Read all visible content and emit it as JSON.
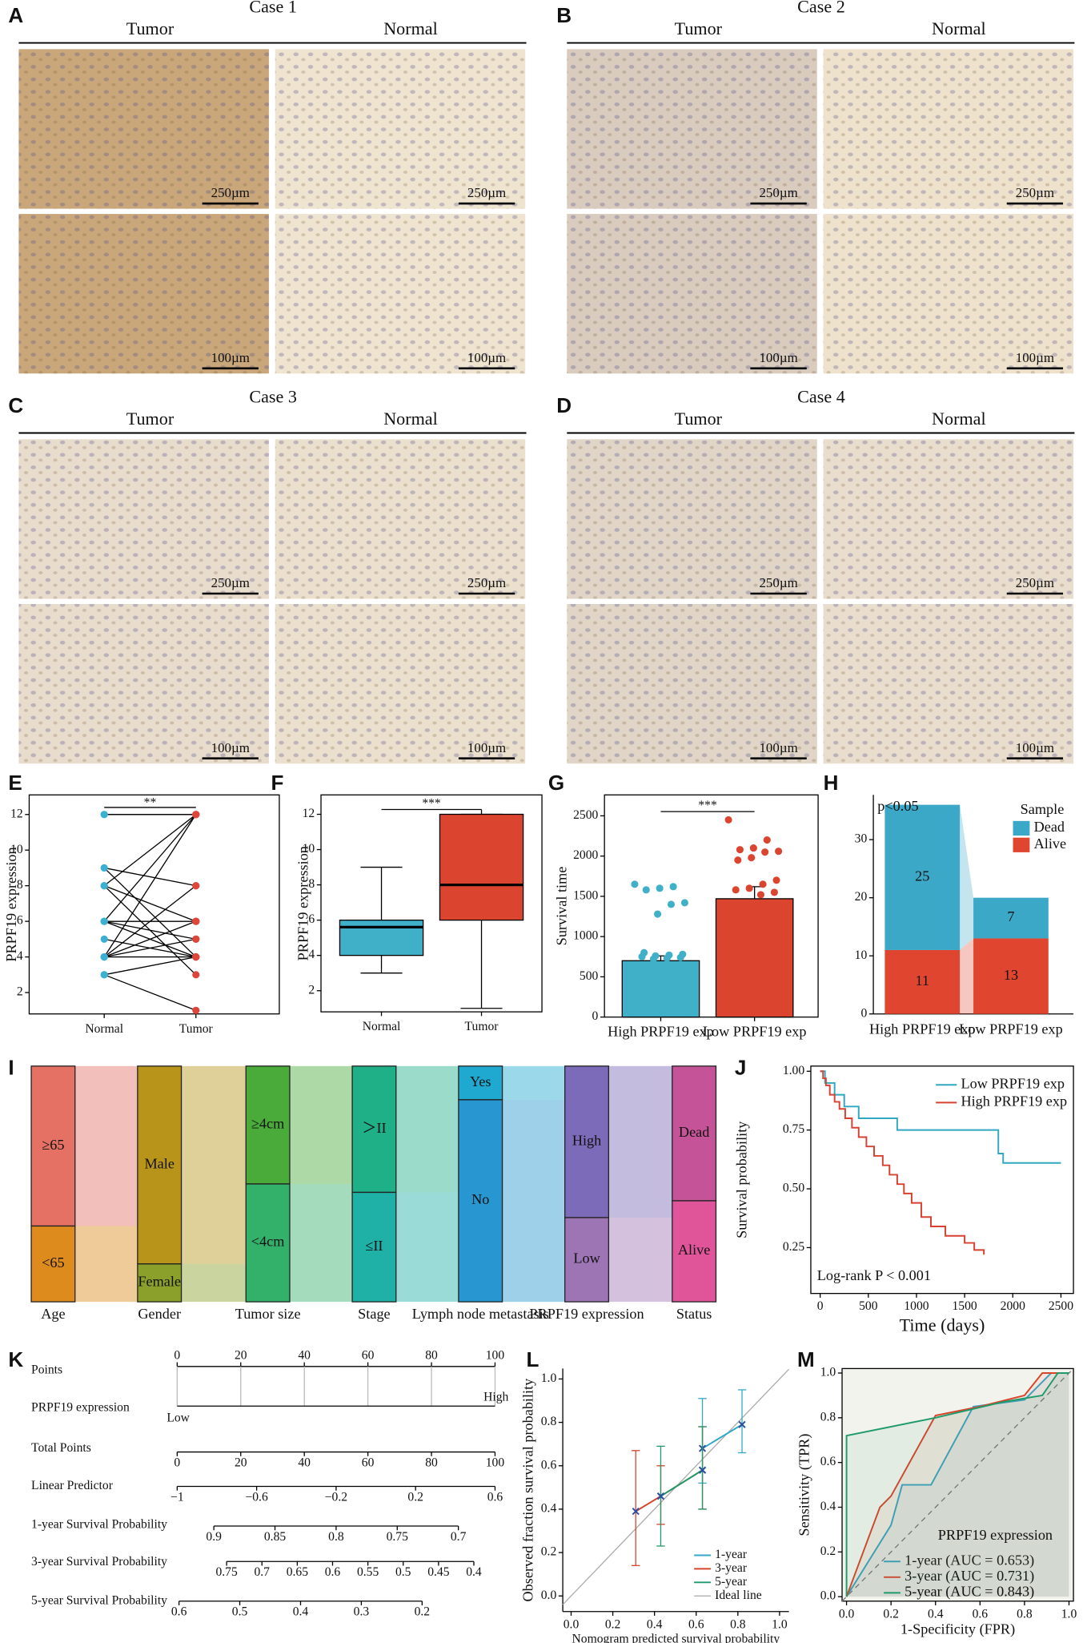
{
  "image_panels": [
    {
      "label": "A",
      "case": "Case 1",
      "headers": [
        "Tumor",
        "Normal"
      ],
      "scale_bars": [
        "250µm",
        "250µm",
        "100µm",
        "100µm"
      ]
    },
    {
      "label": "B",
      "case": "Case 2",
      "headers": [
        "Tumor",
        "Normal"
      ],
      "scale_bars": [
        "250µm",
        "250µm",
        "100µm",
        "100µm"
      ]
    },
    {
      "label": "C",
      "case": "Case 3",
      "headers": [
        "Tumor",
        "Normal"
      ],
      "scale_bars": [
        "250µm",
        "250µm",
        "100µm",
        "100µm"
      ]
    },
    {
      "label": "D",
      "case": "Case 4",
      "headers": [
        "Tumor",
        "Normal"
      ],
      "scale_bars": [
        "250µm",
        "250µm",
        "100µm",
        "100µm"
      ]
    }
  ],
  "chart_data": [
    {
      "panel": "E",
      "type": "paired_dots",
      "ylabel": "PRPF19 expression",
      "categories": [
        "Normal",
        "Tumor"
      ],
      "colors": [
        "#3bb0d0",
        "#e0453a"
      ],
      "pairs": [
        [
          12,
          12
        ],
        [
          12,
          12
        ],
        [
          9,
          8
        ],
        [
          9,
          4
        ],
        [
          8,
          12
        ],
        [
          8,
          6
        ],
        [
          8,
          3
        ],
        [
          6,
          12
        ],
        [
          6,
          6
        ],
        [
          6,
          5
        ],
        [
          6,
          4
        ],
        [
          6,
          6
        ],
        [
          5,
          4
        ],
        [
          4,
          12
        ],
        [
          4,
          8
        ],
        [
          4,
          6
        ],
        [
          4,
          4
        ],
        [
          4,
          5
        ],
        [
          3,
          1
        ],
        [
          3,
          4
        ]
      ],
      "annotation": "**",
      "ylim": [
        0.8,
        13.1
      ],
      "yticks": [
        2,
        4,
        6,
        8,
        10,
        12
      ]
    },
    {
      "panel": "F",
      "type": "box",
      "ylabel": "PRPF19 expression",
      "categories": [
        "Normal",
        "Tumor"
      ],
      "colors": [
        "#40afc8",
        "#db4530"
      ],
      "boxes": [
        {
          "min": 3,
          "q1": 4,
          "median": 5.6,
          "q3": 6,
          "max": 9
        },
        {
          "min": 1,
          "q1": 6,
          "median": 8,
          "q3": 12,
          "max": 12
        }
      ],
      "annotation": "***",
      "ylim": [
        0.8,
        13.1
      ],
      "yticks": [
        2,
        4,
        6,
        8,
        10,
        12
      ]
    },
    {
      "panel": "G",
      "type": "bar_points",
      "ylabel": "Survival time",
      "categories": [
        "High PRPF19 exp",
        "Low PRPF19 exp"
      ],
      "colors": [
        "#40afc8",
        "#db4530"
      ],
      "values": [
        700,
        1470
      ],
      "errors": [
        60,
        150
      ],
      "points": [
        [
          1650,
          1620,
          1600,
          1580,
          1420,
          1400,
          1280,
          800,
          780,
          770,
          760,
          750,
          740,
          730,
          720
        ],
        [
          2450,
          2200,
          2100,
          2080,
          2060,
          2050,
          1980,
          1950,
          1700,
          1650,
          1600,
          1580,
          1550,
          1520
        ]
      ],
      "annotation": "***",
      "ylim": [
        0,
        2760
      ],
      "yticks": [
        0,
        500,
        1000,
        1500,
        2000,
        2500
      ]
    },
    {
      "panel": "H",
      "type": "stacked_bar",
      "categories": [
        "High PRPF19 exp",
        "Low PRPF19 exp"
      ],
      "legend_title": "Sample",
      "annotation": "p<0.05",
      "series": [
        {
          "name": "Alive",
          "color": "#e0452f",
          "values": [
            11,
            13
          ]
        },
        {
          "name": "Dead",
          "color": "#3aa8c6",
          "values": [
            25,
            7
          ]
        }
      ],
      "ylim": [
        0,
        37.7
      ],
      "yticks": [
        0,
        10,
        20,
        30
      ]
    },
    {
      "panel": "I",
      "type": "alluvial",
      "columns": [
        {
          "name": "Age",
          "nodes": [
            {
              "label": "≥65",
              "count": 38,
              "color": "#e57165"
            },
            {
              "label": "<65",
              "count": 18,
              "color": "#de8b1e"
            }
          ]
        },
        {
          "name": "Gender",
          "nodes": [
            {
              "label": "Male",
              "count": 47,
              "color": "#b8951a"
            },
            {
              "label": "Female",
              "count": 9,
              "color": "#8aa02a"
            }
          ]
        },
        {
          "name": "Tumor size",
          "nodes": [
            {
              "label": "≥4cm",
              "count": 28,
              "color": "#4aab3a"
            },
            {
              "label": "<4cm",
              "count": 28,
              "color": "#33b06a"
            }
          ]
        },
        {
          "name": "Stage",
          "nodes": [
            {
              "label": "＞II",
              "count": 30,
              "color": "#1fb088"
            },
            {
              "label": "≤II",
              "count": 26,
              "color": "#1fb0a6"
            }
          ]
        },
        {
          "name": "Lymph node metastasis",
          "nodes": [
            {
              "label": "Yes",
              "count": 8,
              "color": "#1fa8d0"
            },
            {
              "label": "No",
              "count": 48,
              "color": "#2896d0"
            }
          ]
        },
        {
          "name": "PRPF19 expression",
          "nodes": [
            {
              "label": "High",
              "count": 36,
              "color": "#7b6bb8"
            },
            {
              "label": "Low",
              "count": 20,
              "color": "#9d75b5"
            }
          ]
        },
        {
          "name": "Status",
          "nodes": [
            {
              "label": "Dead",
              "count": 32,
              "color": "#c45497"
            },
            {
              "label": "Alive",
              "count": 24,
              "color": "#e0559a"
            }
          ]
        }
      ]
    },
    {
      "panel": "J",
      "type": "km",
      "xlabel": "Time (days)",
      "ylabel": "Survival probability",
      "annotation": "Log-rank P < 0.001",
      "series": [
        {
          "name": "Low PRPF19 exp",
          "color": "#2fa8c0",
          "x": [
            0,
            50,
            150,
            250,
            400,
            800,
            1850,
            1900,
            2500
          ],
          "y": [
            1,
            0.95,
            0.9,
            0.85,
            0.8,
            0.75,
            0.65,
            0.61,
            0.61
          ]
        },
        {
          "name": "High PRPF19 exp",
          "color": "#d84030",
          "x": [
            0,
            30,
            60,
            100,
            150,
            200,
            260,
            330,
            400,
            480,
            560,
            650,
            720,
            800,
            870,
            950,
            1050,
            1150,
            1300,
            1500,
            1600,
            1700
          ],
          "y": [
            1,
            0.97,
            0.94,
            0.9,
            0.87,
            0.84,
            0.8,
            0.76,
            0.72,
            0.68,
            0.64,
            0.6,
            0.56,
            0.52,
            0.48,
            0.44,
            0.38,
            0.34,
            0.3,
            0.27,
            0.24,
            0.22
          ]
        }
      ],
      "xlim": [
        -97,
        2630
      ],
      "ylim": [
        0.055,
        1.022
      ],
      "xticks": [
        0,
        500,
        1000,
        1500,
        2000,
        2500
      ],
      "yticks": [
        0.25,
        {
          "value": 0.5,
          "label": "0.50"
        },
        0.75,
        {
          "value": 1,
          "label": "1.00"
        }
      ]
    },
    {
      "panel": "K",
      "type": "nomogram",
      "rows": [
        {
          "name": "Points",
          "xlim": [
            0,
            100
          ],
          "ticks": [
            0,
            20,
            40,
            60,
            80,
            100
          ]
        },
        {
          "name": "PRPF19 expression",
          "categories": [
            "Low",
            "High"
          ]
        },
        {
          "name": "Total Points",
          "xlim": [
            0,
            100
          ],
          "ticks": [
            0,
            20,
            40,
            60,
            80,
            100
          ]
        },
        {
          "name": "Linear Predictor",
          "xlim": [
            -1,
            0.6
          ],
          "ticks": [
            {
              "value": -1,
              "label": "−1"
            },
            {
              "value": -0.6,
              "label": "−0.6"
            },
            {
              "value": -0.2,
              "label": "−0.2"
            },
            0.2,
            0.6
          ]
        },
        {
          "name": "1-year Survival Probability",
          "xlim": [
            0.93,
            0.67
          ],
          "ticks": [
            0.9,
            0.85,
            0.8,
            0.75,
            0.7
          ]
        },
        {
          "name": "3-year Survival Probability",
          "xlim": [
            0.82,
            0.37
          ],
          "ticks": [
            0.75,
            0.7,
            0.65,
            0.6,
            0.55,
            0.5,
            0.45,
            0.4
          ]
        },
        {
          "name": "5-year Survival Probability",
          "xlim": [
            0.603,
            0.08
          ],
          "ticks": [
            0.6,
            0.5,
            0.4,
            0.3,
            0.2
          ]
        }
      ]
    },
    {
      "panel": "L",
      "type": "calibration",
      "xlabel": "Nomogram predicted survival probability",
      "ylabel": "Observed fraction survival probability",
      "series": [
        {
          "name": "1-year",
          "color": "#35a8c8",
          "x": [
            0.63,
            0.82
          ],
          "y": [
            0.68,
            0.79
          ],
          "lo": [
            0.52,
            0.66
          ],
          "hi": [
            0.91,
            0.95
          ]
        },
        {
          "name": "3-year",
          "color": "#d7452c",
          "x": [
            0.31,
            0.43,
            0.63
          ],
          "y": [
            0.39,
            0.46,
            0.58
          ],
          "lo": [
            0.14,
            0.33,
            0.4
          ],
          "hi": [
            0.67,
            0.6,
            0.78
          ]
        },
        {
          "name": "5-year",
          "color": "#1f9a6a",
          "x": [
            0.43,
            0.63
          ],
          "y": [
            0.46,
            0.58
          ],
          "lo": [
            0.23,
            0.4
          ],
          "hi": [
            0.69,
            0.78
          ]
        }
      ],
      "ideal": {
        "name": "Ideal line",
        "color": "#aaaaaa"
      },
      "xlim": [
        -0.04,
        1.045
      ],
      "ylim": [
        -0.072,
        1.048
      ],
      "xticks": [
        {
          "value": 0,
          "label": "0.0"
        },
        0.2,
        0.4,
        0.6,
        0.8,
        {
          "value": 1,
          "label": "1.0"
        }
      ],
      "yticks": [
        {
          "value": 0,
          "label": "0.0"
        },
        0.2,
        0.4,
        0.6,
        0.8,
        {
          "value": 1,
          "label": "1.0"
        }
      ]
    },
    {
      "panel": "M",
      "type": "roc",
      "xlabel": "1-Specificity (FPR)",
      "ylabel": "Sensitivity (TPR)",
      "legend_title": "PRPF19 expression",
      "series": [
        {
          "name": "1-year (AUC = 0.653)",
          "color": "#35a8c8",
          "x": [
            0,
            0.2,
            0.25,
            0.38,
            0.57,
            0.8,
            0.92,
            1
          ],
          "y": [
            0,
            0.32,
            0.5,
            0.5,
            0.85,
            0.88,
            1,
            1
          ]
        },
        {
          "name": "3-year (AUC = 0.731)",
          "color": "#d7452c",
          "x": [
            0,
            0.15,
            0.2,
            0.4,
            0.6,
            0.8,
            0.88,
            1
          ],
          "y": [
            0,
            0.4,
            0.45,
            0.81,
            0.85,
            0.9,
            1,
            1
          ]
        },
        {
          "name": "5-year (AUC = 0.843)",
          "color": "#1f9a6a",
          "x": [
            0,
            0,
            0.4,
            0.7,
            0.88,
            0.95,
            1
          ],
          "y": [
            0,
            0.72,
            0.8,
            0.87,
            0.9,
            1,
            1
          ]
        }
      ],
      "xlim": [
        -0.02,
        1.02
      ],
      "ylim": [
        -0.02,
        1.02
      ],
      "xticks": [
        {
          "value": 0,
          "label": "0.0"
        },
        0.2,
        0.4,
        0.6,
        0.8,
        {
          "value": 1,
          "label": "1.0"
        }
      ],
      "yticks": [
        {
          "value": 0,
          "label": "0.0"
        },
        0.2,
        0.4,
        0.6,
        0.8,
        {
          "value": 1,
          "label": "1.0"
        }
      ]
    }
  ]
}
